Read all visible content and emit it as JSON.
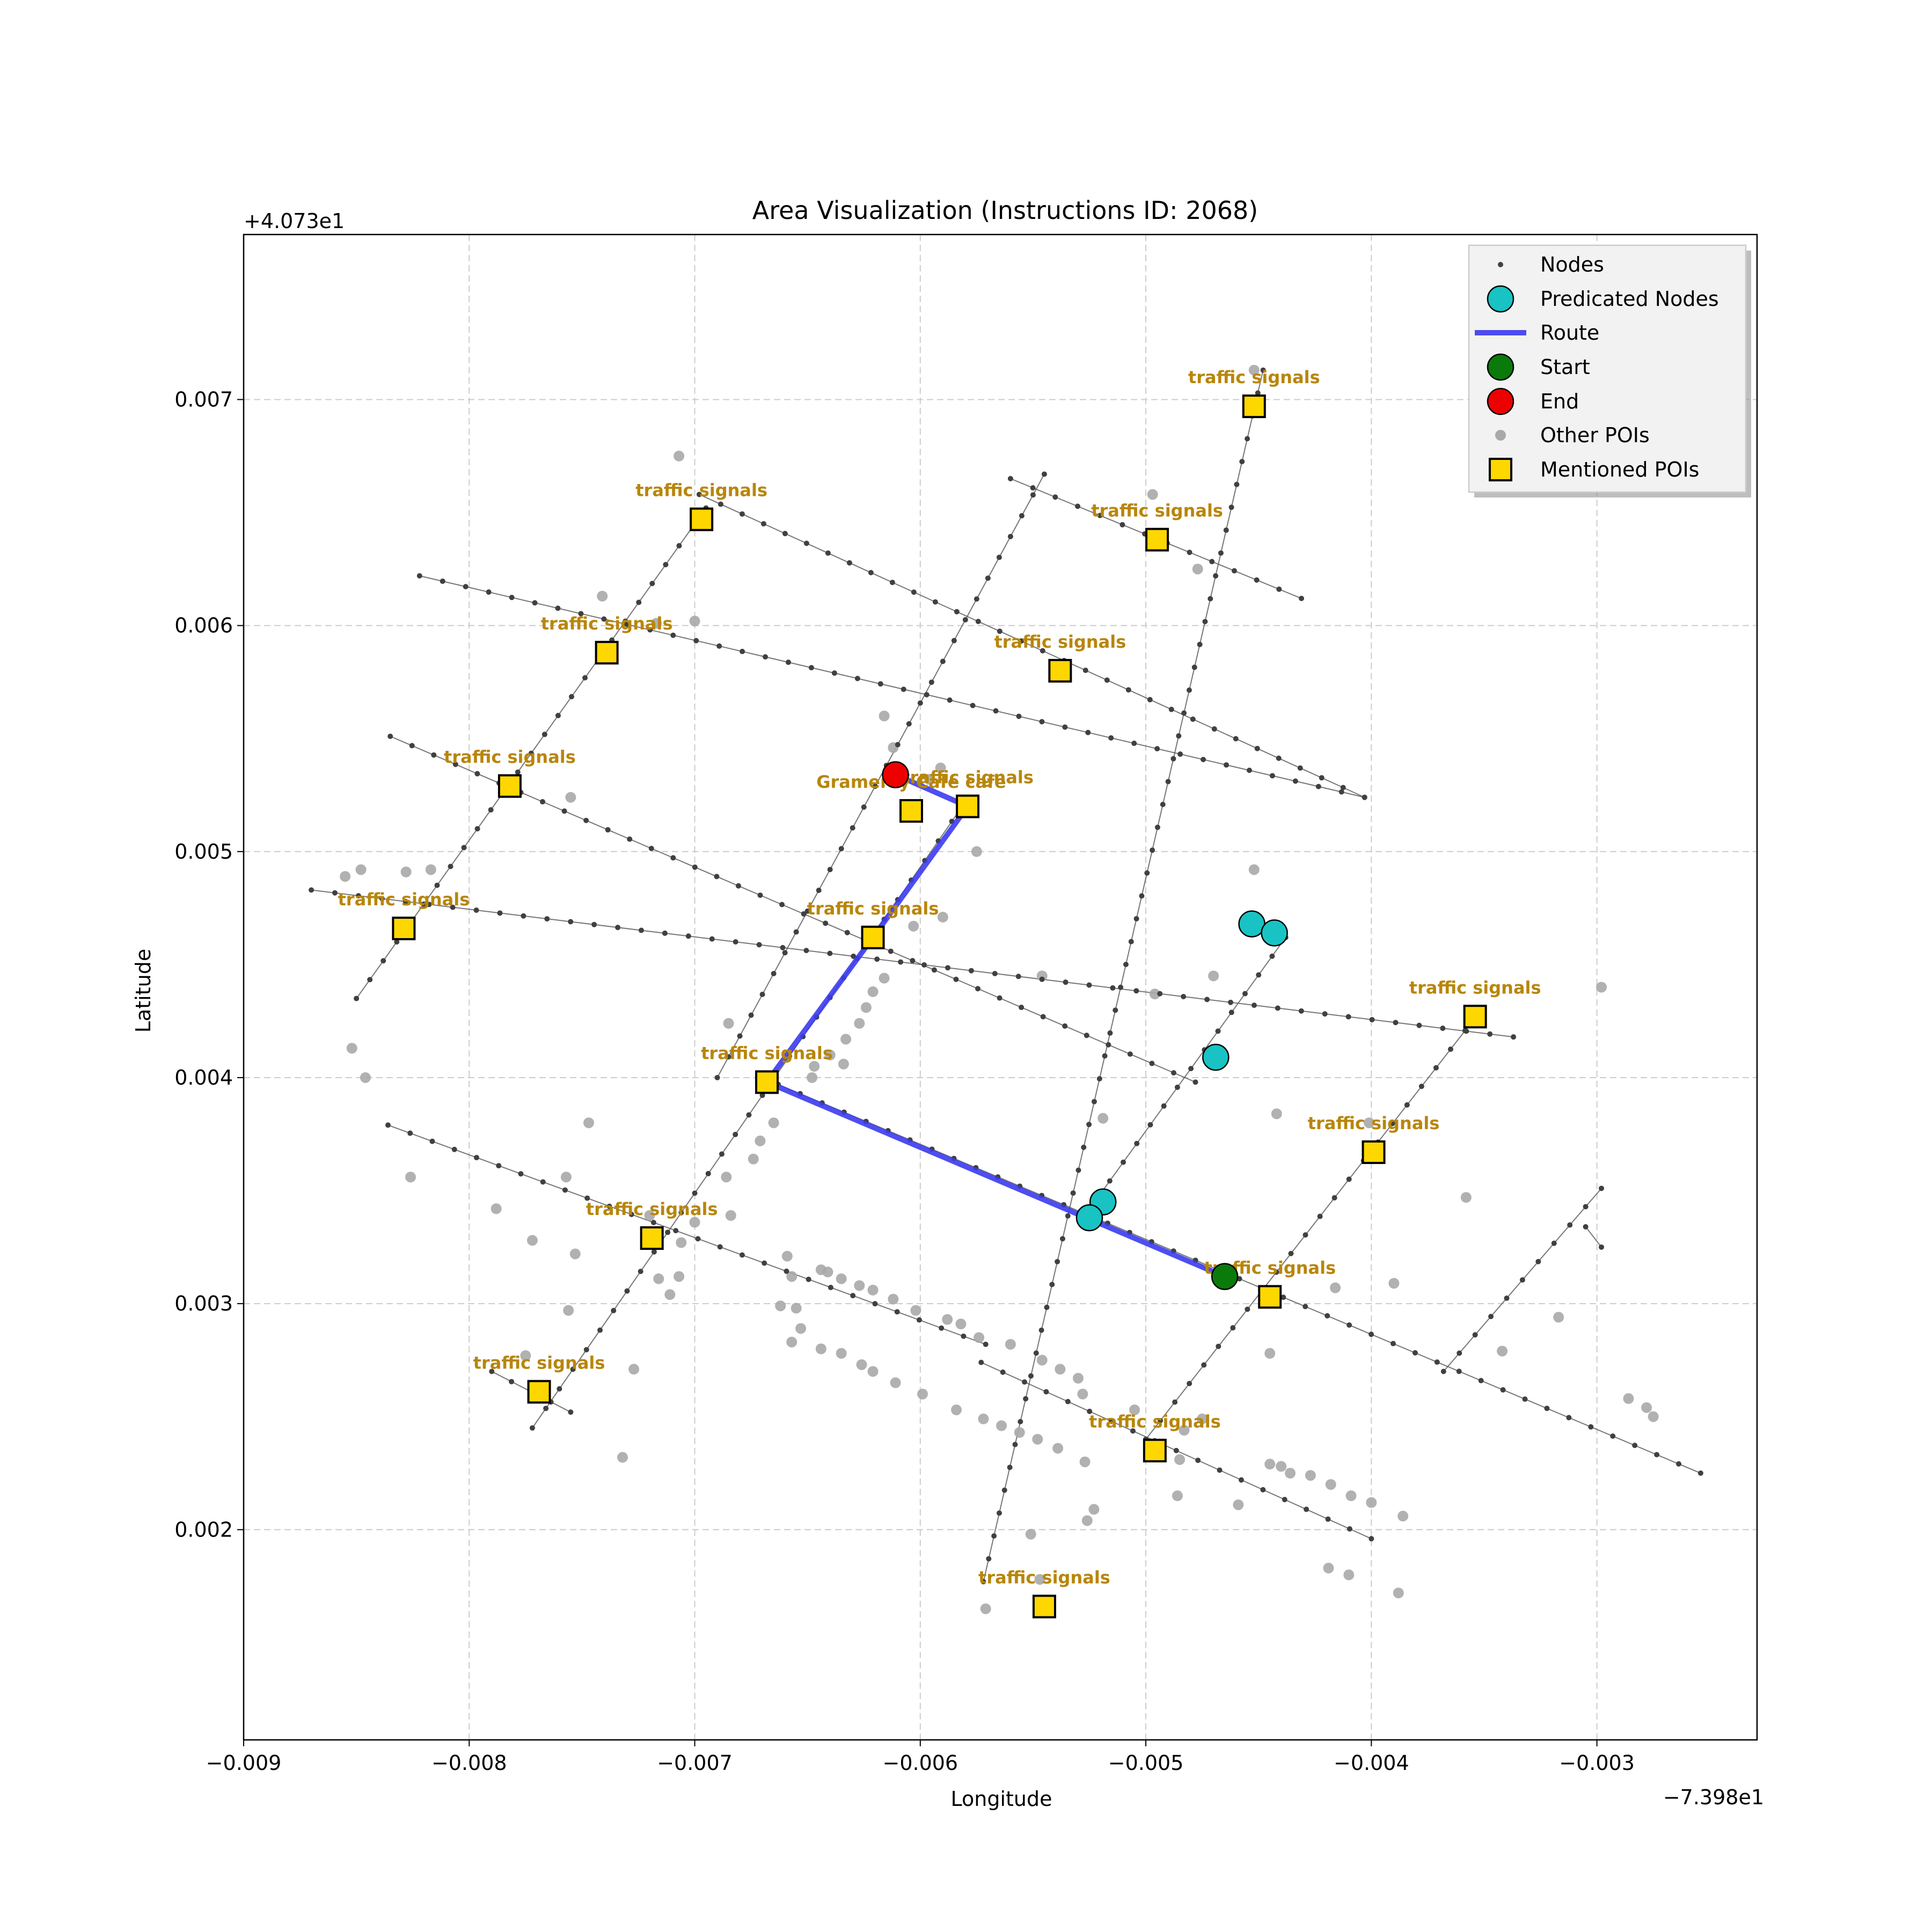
{
  "title": "Area Visualization (Instructions ID: 2068)",
  "xlabel": "Longitude",
  "ylabel": "Latitude",
  "x_offset_label": "−7.398e1",
  "y_offset_label": "+4.073e1",
  "x_ticks": [
    "−0.009",
    "−0.008",
    "−0.007",
    "−0.006",
    "−0.005",
    "−0.004",
    "−0.003"
  ],
  "y_ticks": [
    "0.002",
    "0.003",
    "0.004",
    "0.005",
    "0.006",
    "0.007"
  ],
  "legend": {
    "nodes": "Nodes",
    "predicated": "Predicated Nodes",
    "route": "Route",
    "start": "Start",
    "end": "End",
    "other_pois": "Other POIs",
    "mentioned_pois": "Mentioned POIs"
  },
  "colors": {
    "route": "#3b3bf0",
    "predicated": "#19c3c3",
    "start": "#0a7a0a",
    "end": "#ee0000",
    "mentioned_poi": "#ffd700",
    "poi_label": "#b8860b",
    "node": "#404040",
    "other_poi": "#a8a8a8",
    "grid": "#cccccc"
  },
  "chart_data": {
    "type": "map",
    "x_offset": -73.98,
    "y_offset": 40.73,
    "xlim": [
      -0.009,
      -0.00229
    ],
    "ylim": [
      0.00107,
      0.00773
    ],
    "grid": true,
    "legend_position": "upper right",
    "streets": [
      [
        [
          -0.00822,
          0.00622
        ],
        [
          -0.00403,
          0.00524
        ]
      ],
      [
        [
          -0.00835,
          0.00551
        ],
        [
          -0.00478,
          0.00398
        ]
      ],
      [
        [
          -0.0087,
          0.00483
        ],
        [
          -0.00337,
          0.00418
        ]
      ],
      [
        [
          -0.00836,
          0.00379
        ],
        [
          -0.00571,
          0.00282
        ]
      ],
      [
        [
          -0.00698,
          0.00658
        ],
        [
          -0.00403,
          0.00524
        ]
      ],
      [
        [
          -0.0056,
          0.00665
        ],
        [
          -0.00431,
          0.00612
        ]
      ],
      [
        [
          -0.00663,
          0.00397
        ],
        [
          -0.00254,
          0.00225
        ]
      ],
      [
        [
          -0.00573,
          0.00274
        ],
        [
          -0.004,
          0.00196
        ]
      ],
      [
        [
          -0.0079,
          0.0027
        ],
        [
          -0.00755,
          0.00252
        ]
      ],
      [
        [
          -0.0085,
          0.00435
        ],
        [
          -0.00695,
          0.00652
        ]
      ],
      [
        [
          -0.00772,
          0.00245
        ],
        [
          -0.0058,
          0.00522
        ]
      ],
      [
        [
          -0.0069,
          0.004
        ],
        [
          -0.00545,
          0.00667
        ]
      ],
      [
        [
          -0.00522,
          0.00346
        ],
        [
          -0.00438,
          0.00462
        ]
      ],
      [
        [
          -0.00572,
          0.00177
        ],
        [
          -0.00448,
          0.00713
        ]
      ],
      [
        [
          -0.00368,
          0.0027
        ],
        [
          -0.00298,
          0.00351
        ]
      ],
      [
        [
          -0.00305,
          0.00334
        ],
        [
          -0.00298,
          0.00325
        ]
      ],
      [
        [
          -0.005,
          0.0024
        ],
        [
          -0.00352,
          0.00429
        ]
      ]
    ],
    "route": [
      [
        -0.00465,
        0.00312
      ],
      [
        -0.00668,
        0.00398
      ],
      [
        -0.00621,
        0.00462
      ],
      [
        -0.00579,
        0.0052
      ],
      [
        -0.00611,
        0.00534
      ]
    ],
    "predicated_nodes": [
      [
        -0.00453,
        0.00468
      ],
      [
        -0.00443,
        0.00464
      ],
      [
        -0.00469,
        0.00409
      ],
      [
        -0.00519,
        0.00345
      ],
      [
        -0.00525,
        0.00338
      ]
    ],
    "start": [
      -0.00465,
      0.00312
    ],
    "end": [
      -0.00611,
      0.00534
    ],
    "mentioned_pois": [
      {
        "label": "traffic signals",
        "x": -0.00452,
        "y": 0.00697
      },
      {
        "label": "traffic signals",
        "x": -0.00495,
        "y": 0.00638
      },
      {
        "label": "traffic signals",
        "x": -0.00697,
        "y": 0.00647
      },
      {
        "label": "traffic signals",
        "x": -0.00739,
        "y": 0.00588
      },
      {
        "label": "traffic signals",
        "x": -0.00538,
        "y": 0.0058
      },
      {
        "label": "traffic signals",
        "x": -0.00782,
        "y": 0.00529
      },
      {
        "label": "traffic signals",
        "x": -0.00579,
        "y": 0.0052
      },
      {
        "label": "Gramercy Cafe cafe",
        "x": -0.00604,
        "y": 0.00518
      },
      {
        "label": "traffic signals",
        "x": -0.00829,
        "y": 0.00466
      },
      {
        "label": "traffic signals",
        "x": -0.00621,
        "y": 0.00462
      },
      {
        "label": "traffic signals",
        "x": -0.00668,
        "y": 0.00398
      },
      {
        "label": "traffic signals",
        "x": -0.00354,
        "y": 0.00427
      },
      {
        "label": "traffic signals",
        "x": -0.00399,
        "y": 0.00367
      },
      {
        "label": "traffic signals",
        "x": -0.00719,
        "y": 0.00329
      },
      {
        "label": "traffic signals",
        "x": -0.00445,
        "y": 0.00303
      },
      {
        "label": "traffic signals",
        "x": -0.00769,
        "y": 0.00261
      },
      {
        "label": "traffic signals",
        "x": -0.00496,
        "y": 0.00235
      },
      {
        "label": "traffic signals",
        "x": -0.00545,
        "y": 0.00166
      }
    ],
    "other_pois": [
      [
        -0.00707,
        0.00675
      ],
      [
        -0.007,
        0.00602
      ],
      [
        -0.00717,
        0.00601
      ],
      [
        -0.00741,
        0.00613
      ],
      [
        -0.00497,
        0.00658
      ],
      [
        -0.00477,
        0.00625
      ],
      [
        -0.00452,
        0.00713
      ],
      [
        -0.00616,
        0.0056
      ],
      [
        -0.00612,
        0.00546
      ],
      [
        -0.00596,
        0.00532
      ],
      [
        -0.00591,
        0.00537
      ],
      [
        -0.00575,
        0.005
      ],
      [
        -0.00755,
        0.00524
      ],
      [
        -0.00817,
        0.00492
      ],
      [
        -0.00828,
        0.00491
      ],
      [
        -0.00848,
        0.00492
      ],
      [
        -0.00855,
        0.00489
      ],
      [
        -0.00519,
        0.00382
      ],
      [
        -0.00452,
        0.00492
      ],
      [
        -0.0047,
        0.00445
      ],
      [
        -0.00496,
        0.00437
      ],
      [
        -0.00546,
        0.00445
      ],
      [
        -0.0059,
        0.00471
      ],
      [
        -0.00603,
        0.00467
      ],
      [
        -0.00616,
        0.00444
      ],
      [
        -0.00621,
        0.00438
      ],
      [
        -0.00624,
        0.00431
      ],
      [
        -0.00627,
        0.00424
      ],
      [
        -0.00633,
        0.00417
      ],
      [
        -0.0064,
        0.0041
      ],
      [
        -0.00634,
        0.00406
      ],
      [
        -0.00647,
        0.00405
      ],
      [
        -0.00648,
        0.004
      ],
      [
        -0.00685,
        0.00424
      ],
      [
        -0.00852,
        0.00413
      ],
      [
        -0.00846,
        0.004
      ],
      [
        -0.00747,
        0.0038
      ],
      [
        -0.00665,
        0.0038
      ],
      [
        -0.00671,
        0.00372
      ],
      [
        -0.00674,
        0.00364
      ],
      [
        -0.00686,
        0.00356
      ],
      [
        -0.00757,
        0.00356
      ],
      [
        -0.00826,
        0.00356
      ],
      [
        -0.00788,
        0.00342
      ],
      [
        -0.007,
        0.00336
      ],
      [
        -0.00706,
        0.00327
      ],
      [
        -0.00684,
        0.00339
      ],
      [
        -0.0072,
        0.00339
      ],
      [
        -0.00753,
        0.00322
      ],
      [
        -0.00772,
        0.00328
      ],
      [
        -0.00716,
        0.00311
      ],
      [
        -0.00707,
        0.00312
      ],
      [
        -0.00711,
        0.00304
      ],
      [
        -0.00756,
        0.00297
      ],
      [
        -0.00775,
        0.00277
      ],
      [
        -0.00727,
        0.00271
      ],
      [
        -0.00732,
        0.00232
      ],
      [
        -0.00659,
        0.00321
      ],
      [
        -0.00657,
        0.00312
      ],
      [
        -0.00662,
        0.00299
      ],
      [
        -0.00655,
        0.00298
      ],
      [
        -0.00653,
        0.00289
      ],
      [
        -0.00657,
        0.00283
      ],
      [
        -0.00644,
        0.00315
      ],
      [
        -0.00641,
        0.00314
      ],
      [
        -0.00635,
        0.00311
      ],
      [
        -0.00627,
        0.00308
      ],
      [
        -0.00621,
        0.00306
      ],
      [
        -0.00612,
        0.00302
      ],
      [
        -0.00602,
        0.00297
      ],
      [
        -0.00588,
        0.00293
      ],
      [
        -0.00582,
        0.00291
      ],
      [
        -0.00574,
        0.00285
      ],
      [
        -0.0056,
        0.00282
      ],
      [
        -0.00546,
        0.00275
      ],
      [
        -0.00538,
        0.00271
      ],
      [
        -0.0053,
        0.00267
      ],
      [
        -0.00644,
        0.0028
      ],
      [
        -0.00635,
        0.00278
      ],
      [
        -0.00626,
        0.00273
      ],
      [
        -0.00621,
        0.0027
      ],
      [
        -0.00611,
        0.00265
      ],
      [
        -0.00599,
        0.0026
      ],
      [
        -0.00584,
        0.00253
      ],
      [
        -0.00572,
        0.00249
      ],
      [
        -0.00564,
        0.00246
      ],
      [
        -0.00556,
        0.00243
      ],
      [
        -0.00548,
        0.0024
      ],
      [
        -0.00539,
        0.00236
      ],
      [
        -0.00527,
        0.0023
      ],
      [
        -0.00528,
        0.0026
      ],
      [
        -0.00505,
        0.00253
      ],
      [
        -0.00483,
        0.00244
      ],
      [
        -0.00475,
        0.00249
      ],
      [
        -0.00445,
        0.00229
      ],
      [
        -0.0044,
        0.00228
      ],
      [
        -0.00436,
        0.00225
      ],
      [
        -0.00427,
        0.00224
      ],
      [
        -0.00418,
        0.0022
      ],
      [
        -0.00409,
        0.00215
      ],
      [
        -0.004,
        0.00212
      ],
      [
        -0.00386,
        0.00206
      ],
      [
        -0.00486,
        0.00215
      ],
      [
        -0.00459,
        0.00211
      ],
      [
        -0.00419,
        0.00183
      ],
      [
        -0.0041,
        0.0018
      ],
      [
        -0.00388,
        0.00172
      ],
      [
        -0.00523,
        0.00209
      ],
      [
        -0.00526,
        0.00204
      ],
      [
        -0.00551,
        0.00198
      ],
      [
        -0.00547,
        0.00178
      ],
      [
        -0.00571,
        0.00165
      ],
      [
        -0.00485,
        0.00231
      ],
      [
        -0.0039,
        0.00309
      ],
      [
        -0.00416,
        0.00307
      ],
      [
        -0.00445,
        0.00278
      ],
      [
        -0.00442,
        0.00384
      ],
      [
        -0.00401,
        0.0038
      ],
      [
        -0.00358,
        0.00347
      ],
      [
        -0.00342,
        0.00279
      ],
      [
        -0.00317,
        0.00294
      ],
      [
        -0.00298,
        0.0044
      ],
      [
        -0.00286,
        0.00258
      ],
      [
        -0.00278,
        0.00254
      ],
      [
        -0.00275,
        0.0025
      ]
    ]
  }
}
